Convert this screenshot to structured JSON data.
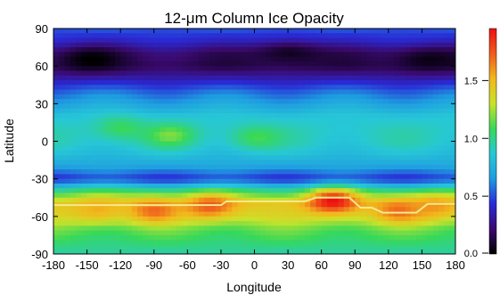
{
  "chart_data": {
    "type": "heatmap",
    "title": "12-μm Column Ice Opacity",
    "xlabel": "Longitude",
    "ylabel": "Latitude",
    "xlim": [
      -180,
      180
    ],
    "ylim": [
      -90,
      90
    ],
    "x_ticks": [
      -180,
      -150,
      -120,
      -90,
      -60,
      -30,
      0,
      30,
      60,
      90,
      120,
      150,
      180
    ],
    "y_ticks": [
      -90,
      -60,
      -30,
      0,
      30,
      60,
      90
    ],
    "colorbar": {
      "range": [
        0.0,
        1.95
      ],
      "ticks": [
        0.0,
        0.5,
        1.0,
        1.5
      ],
      "tick_labels": [
        "0.0",
        "0.5",
        "1.0",
        "1.5"
      ],
      "colors": [
        "#000000",
        "#3a0a6e",
        "#2a2ad6",
        "#1e9be0",
        "#27c7d6",
        "#37d85a",
        "#c8e32a",
        "#f2b81c",
        "#f05a1c",
        "#ee1010"
      ]
    },
    "latitude_profile": {
      "lat": [
        90,
        80,
        70,
        60,
        50,
        40,
        30,
        20,
        10,
        0,
        -10,
        -20,
        -30,
        -40,
        -50,
        -60,
        -70,
        -80,
        -90
      ],
      "opacity": [
        0.52,
        0.4,
        0.2,
        0.15,
        0.35,
        0.55,
        0.7,
        0.85,
        0.9,
        0.9,
        0.82,
        0.7,
        0.45,
        1.05,
        1.45,
        1.35,
        1.15,
        1.05,
        0.95
      ]
    },
    "hotspots": [
      {
        "lon": -120,
        "lat": 10,
        "opacity": 1.1
      },
      {
        "lon": -75,
        "lat": 5,
        "opacity": 1.15
      },
      {
        "lon": 0,
        "lat": 3,
        "opacity": 1.1
      },
      {
        "lon": 70,
        "lat": -48,
        "opacity": 1.95
      },
      {
        "lon": -40,
        "lat": -52,
        "opacity": 1.75
      },
      {
        "lon": -90,
        "lat": -55,
        "opacity": 1.7
      },
      {
        "lon": -140,
        "lat": -55,
        "opacity": 1.55
      },
      {
        "lon": 130,
        "lat": -55,
        "opacity": 1.7
      },
      {
        "lon": 160,
        "lat": -52,
        "opacity": 1.6
      }
    ],
    "dark_patches": [
      {
        "lon": -150,
        "lat": 65,
        "opacity": 0.02
      },
      {
        "lon": 30,
        "lat": 70,
        "opacity": 0.02
      },
      {
        "lon": 150,
        "lat": 65,
        "opacity": 0.02
      }
    ],
    "boundary_line": {
      "color": "#f3ea8a",
      "lon": [
        -180,
        -30,
        -25,
        45,
        55,
        85,
        95,
        105,
        115,
        125,
        135,
        145,
        155,
        180
      ],
      "lat": [
        -51,
        -51,
        -48,
        -48,
        -45,
        -45,
        -53,
        -53,
        -57,
        -57,
        -57,
        -57,
        -50,
        -50
      ]
    }
  }
}
